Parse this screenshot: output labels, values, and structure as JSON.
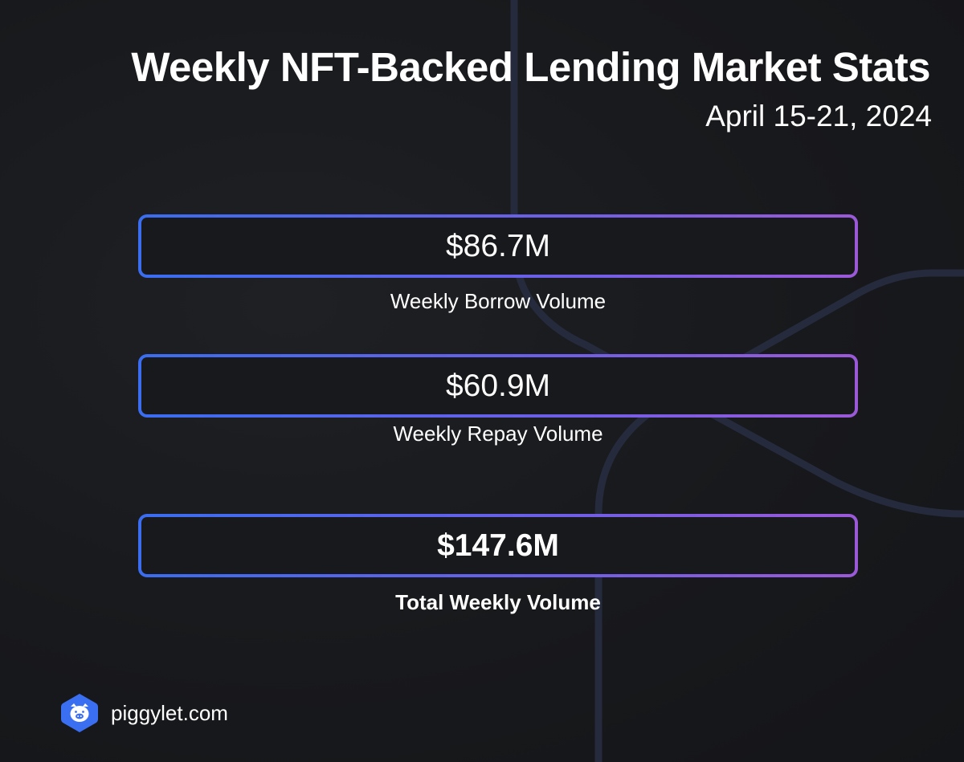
{
  "header": {
    "title": "Weekly NFT-Backed Lending Market Stats",
    "date_range": "April 15-21, 2024"
  },
  "stats": [
    {
      "value": "$86.7M",
      "label": "Weekly Borrow Volume"
    },
    {
      "value": "$60.9M",
      "label": "Weekly Repay Volume"
    },
    {
      "value": "$147.6M",
      "label": "Total Weekly Volume"
    }
  ],
  "footer": {
    "brand_name": "piggylet.com",
    "logo_icon": "pig-hexagon-icon"
  },
  "colors": {
    "background": "#18191c",
    "gradient_start": "#3a6df0",
    "gradient_end": "#9b59d8",
    "logo_blue": "#3b6ff2"
  }
}
